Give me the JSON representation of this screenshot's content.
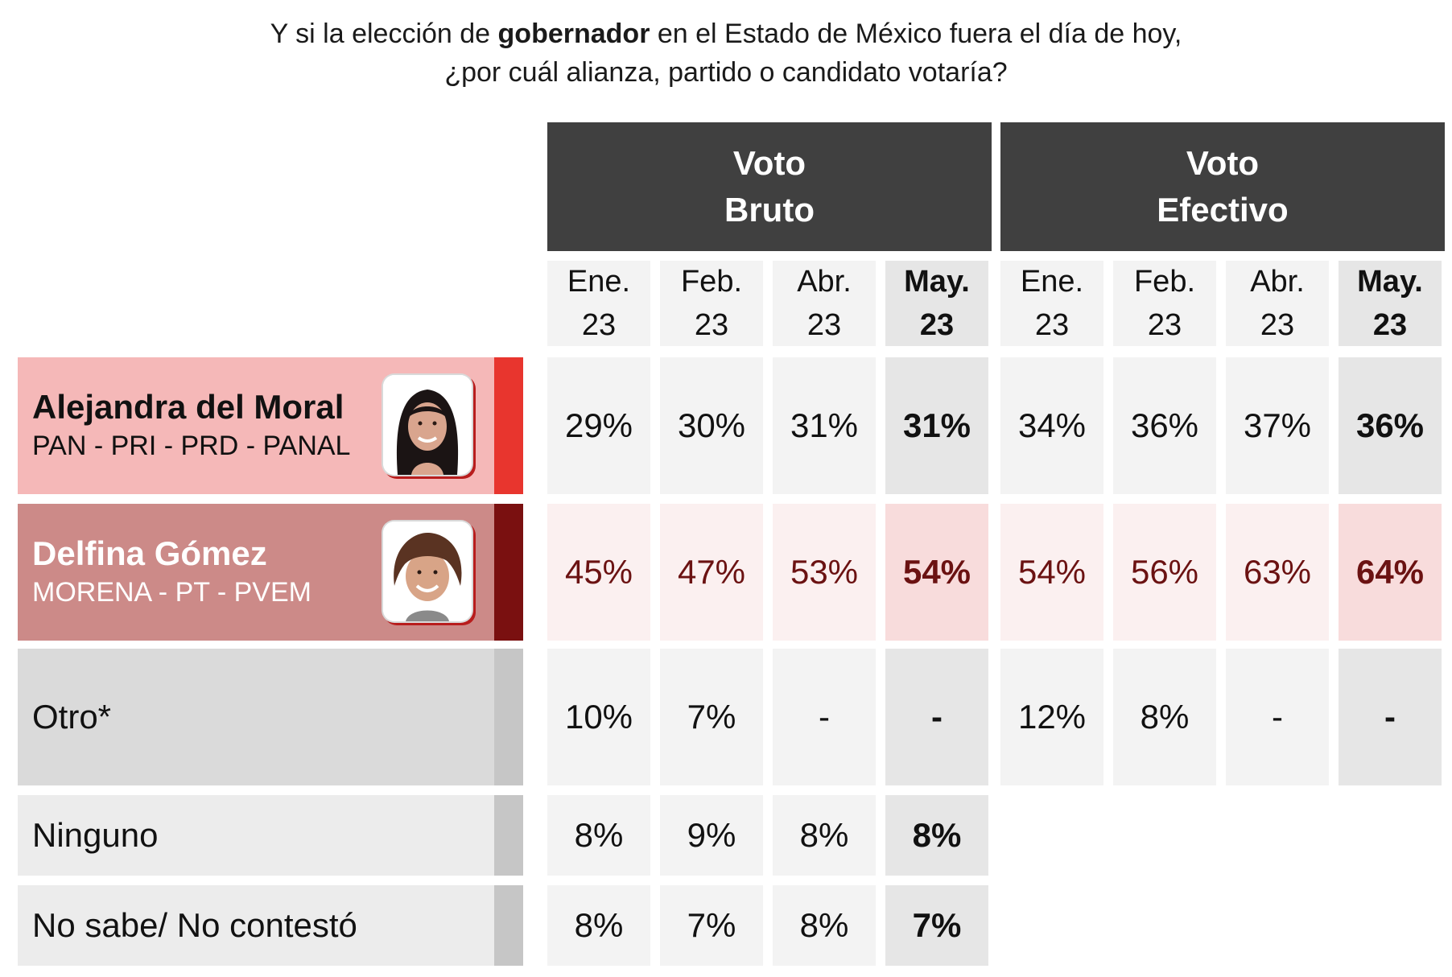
{
  "title": {
    "line1_pre": "Y si la elección de ",
    "line1_bold": "gobernador",
    "line1_post": " en el Estado de México fuera el día de hoy,",
    "line2": "¿por cuál alianza, partido o candidato votaría?"
  },
  "groups": [
    {
      "line1": "Voto",
      "line2": "Bruto"
    },
    {
      "line1": "Voto",
      "line2": "Efectivo"
    }
  ],
  "months": [
    {
      "line1": "Ene.",
      "line2": "23"
    },
    {
      "line1": "Feb.",
      "line2": "23"
    },
    {
      "line1": "Abr.",
      "line2": "23"
    },
    {
      "line1": "May.",
      "line2": "23"
    }
  ],
  "rows": [
    {
      "name": "Alejandra del Moral",
      "parties": "PAN - PRI - PRD - PANAL",
      "photo": "candidate-photo",
      "label_bg": "#f5b8b8",
      "stripe": "#e8352e",
      "name_color": "#111111",
      "cell_bg": "#f3f3f3",
      "cell_bg_cur": "#e6e6e6",
      "text_color": "#111111",
      "bruto": [
        "29%",
        "30%",
        "31%",
        "31%"
      ],
      "efectivo": [
        "34%",
        "36%",
        "37%",
        "36%"
      ]
    },
    {
      "name": "Delfina Gómez",
      "parties": "MORENA - PT - PVEM",
      "photo": "candidate-photo",
      "label_bg": "#cc8a88",
      "stripe": "#7a1010",
      "name_color": "#ffffff",
      "cell_bg": "#fbf0f0",
      "cell_bg_cur": "#f8dcdc",
      "text_color": "#6b1212",
      "bruto": [
        "45%",
        "47%",
        "53%",
        "54%"
      ],
      "efectivo": [
        "54%",
        "56%",
        "63%",
        "64%"
      ]
    },
    {
      "name": "Otro*",
      "parties": "",
      "label_bg": "#dadada",
      "stripe": "#c6c6c6",
      "name_color": "#111111",
      "cell_bg": "#f3f3f3",
      "cell_bg_cur": "#e6e6e6",
      "text_color": "#111111",
      "bruto": [
        "10%",
        "7%",
        "-",
        "-"
      ],
      "efectivo": [
        "12%",
        "8%",
        "-",
        "-"
      ]
    },
    {
      "name": "Ninguno",
      "parties": "",
      "label_bg": "#ececec",
      "stripe": "#c6c6c6",
      "name_color": "#111111",
      "cell_bg": "#f3f3f3",
      "cell_bg_cur": "#e6e6e6",
      "text_color": "#111111",
      "bruto": [
        "8%",
        "9%",
        "8%",
        "8%"
      ],
      "efectivo": null
    },
    {
      "name": "No sabe/ No contestó",
      "parties": "",
      "label_bg": "#ececec",
      "stripe": "#c6c6c6",
      "name_color": "#111111",
      "cell_bg": "#f3f3f3",
      "cell_bg_cur": "#e6e6e6",
      "text_color": "#111111",
      "bruto": [
        "8%",
        "7%",
        "8%",
        "7%"
      ],
      "efectivo": null
    }
  ],
  "chart_data": {
    "type": "table",
    "title": "Y si la elección de gobernador en el Estado de México fuera el día de hoy, ¿por cuál alianza, partido o candidato votaría?",
    "column_groups": [
      "Voto Bruto",
      "Voto Efectivo"
    ],
    "columns": [
      "Ene. 23",
      "Feb. 23",
      "Abr. 23",
      "May. 23"
    ],
    "rows": [
      {
        "label": "Alejandra del Moral (PAN - PRI - PRD - PANAL)",
        "voto_bruto": [
          "29%",
          "30%",
          "31%",
          "31%"
        ],
        "voto_efectivo": [
          "34%",
          "36%",
          "37%",
          "36%"
        ]
      },
      {
        "label": "Delfina Gómez (MORENA - PT - PVEM)",
        "voto_bruto": [
          "45%",
          "47%",
          "53%",
          "54%"
        ],
        "voto_efectivo": [
          "54%",
          "56%",
          "63%",
          "64%"
        ]
      },
      {
        "label": "Otro*",
        "voto_bruto": [
          "10%",
          "7%",
          "-",
          "-"
        ],
        "voto_efectivo": [
          "12%",
          "8%",
          "-",
          "-"
        ]
      },
      {
        "label": "Ninguno",
        "voto_bruto": [
          "8%",
          "9%",
          "8%",
          "8%"
        ],
        "voto_efectivo": null
      },
      {
        "label": "No sabe/ No contestó",
        "voto_bruto": [
          "8%",
          "7%",
          "8%",
          "7%"
        ],
        "voto_efectivo": null
      }
    ]
  }
}
